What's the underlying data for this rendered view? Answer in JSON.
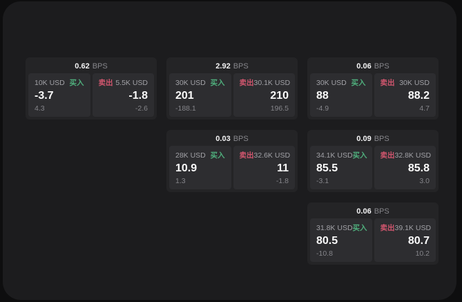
{
  "unit": "BPS",
  "colors": {
    "buy_green": "#4fae7c",
    "sell_red": "#d1566e"
  },
  "cards": [
    {
      "row": 1,
      "col": 1,
      "bps": "0.62",
      "buy": {
        "amount": "10K USD",
        "side": "买入",
        "value": "-3.7",
        "sub": "4.3"
      },
      "sell": {
        "side": "卖出",
        "amount": "5.5K USD",
        "value": "-1.8",
        "sub": "-2.6"
      }
    },
    {
      "row": 1,
      "col": 2,
      "bps": "2.92",
      "buy": {
        "amount": "30K USD",
        "side": "买入",
        "value": "201",
        "sub": "-188.1"
      },
      "sell": {
        "side": "卖出",
        "amount": "30.1K USD",
        "value": "210",
        "sub": "196.5"
      }
    },
    {
      "row": 1,
      "col": 3,
      "bps": "0.06",
      "buy": {
        "amount": "30K USD",
        "side": "买入",
        "value": "88",
        "sub": "-4.9"
      },
      "sell": {
        "side": "卖出",
        "amount": "30K USD",
        "value": "88.2",
        "sub": "4.7"
      }
    },
    {
      "row": 2,
      "col": 2,
      "bps": "0.03",
      "buy": {
        "amount": "28K USD",
        "side": "买入",
        "value": "10.9",
        "sub": "1.3"
      },
      "sell": {
        "side": "卖出",
        "amount": "32.6K USD",
        "value": "11",
        "sub": "-1.8"
      }
    },
    {
      "row": 2,
      "col": 3,
      "bps": "0.09",
      "buy": {
        "amount": "34.1K USD",
        "side": "买入",
        "value": "85.5",
        "sub": "-3.1"
      },
      "sell": {
        "side": "卖出",
        "amount": "32.8K USD",
        "value": "85.8",
        "sub": "3.0"
      }
    },
    {
      "row": 3,
      "col": 3,
      "bps": "0.06",
      "buy": {
        "amount": "31.8K USD",
        "side": "买入",
        "value": "80.5",
        "sub": "-10.8"
      },
      "sell": {
        "side": "卖出",
        "amount": "39.1K USD",
        "value": "80.7",
        "sub": "10.2"
      }
    }
  ]
}
